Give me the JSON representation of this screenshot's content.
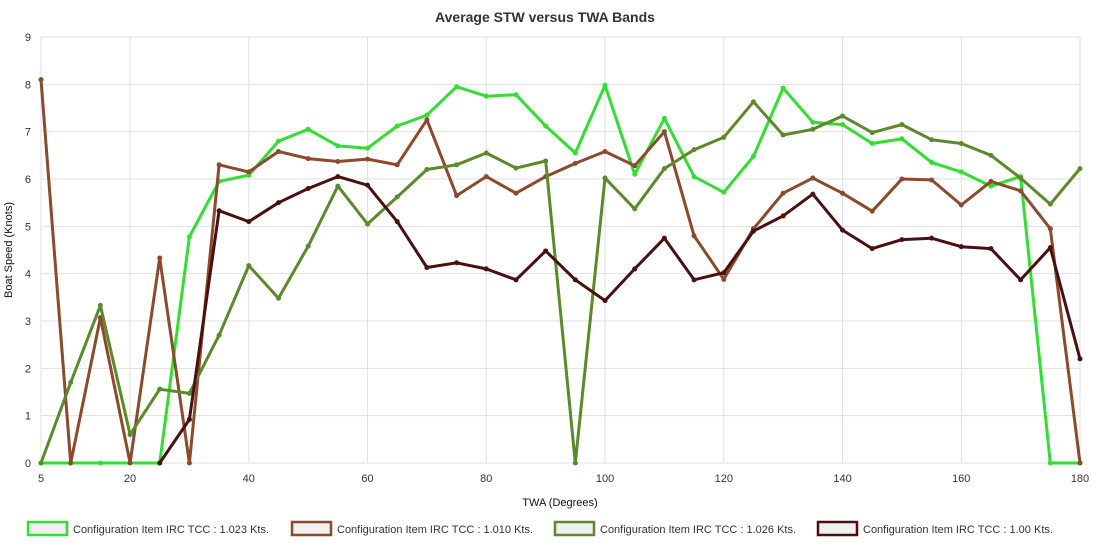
{
  "chart_data": {
    "type": "line",
    "title": "Average STW versus TWA Bands",
    "xlabel": "TWA (Degrees)",
    "ylabel": "Boat Speed (Knots)",
    "xlim": [
      5,
      180
    ],
    "ylim": [
      0,
      9
    ],
    "grid": true,
    "legend_position": "bottom",
    "x_ticks": [
      "5",
      "20",
      "40",
      "60",
      "80",
      "100",
      "120",
      "140",
      "160",
      "180"
    ],
    "y_ticks": [
      "0",
      "1",
      "2",
      "3",
      "4",
      "5",
      "6",
      "7",
      "8",
      "9"
    ],
    "x": [
      5,
      10,
      15,
      20,
      25,
      30,
      35,
      40,
      45,
      50,
      55,
      60,
      65,
      70,
      75,
      80,
      85,
      90,
      95,
      100,
      105,
      110,
      115,
      120,
      125,
      130,
      135,
      140,
      145,
      150,
      155,
      160,
      165,
      170,
      175,
      180
    ],
    "series": [
      {
        "name": "Configuration Item IRC TCC : 1.023 Kts.",
        "color": "#33dd33",
        "values": [
          0,
          0,
          0,
          0,
          0,
          4.78,
          5.95,
          6.08,
          6.8,
          7.05,
          6.7,
          6.65,
          7.12,
          7.35,
          7.95,
          7.75,
          7.78,
          7.12,
          6.55,
          7.98,
          6.1,
          7.28,
          6.05,
          5.72,
          6.48,
          7.92,
          7.2,
          7.15,
          6.75,
          6.85,
          6.35,
          6.15,
          5.85,
          6.05,
          0,
          0
        ]
      },
      {
        "name": "Configuration Item IRC TCC : 1.010 Kts.",
        "color": "#8b4a2b",
        "values": [
          8.1,
          0,
          3.07,
          0,
          4.33,
          0,
          6.3,
          6.15,
          6.58,
          6.43,
          6.37,
          6.42,
          6.3,
          7.25,
          5.65,
          6.05,
          5.7,
          6.05,
          6.33,
          6.58,
          6.28,
          7.0,
          4.8,
          3.88,
          4.95,
          5.7,
          6.02,
          5.7,
          5.32,
          6.0,
          5.98,
          5.45,
          5.95,
          5.75,
          4.95,
          0
        ]
      },
      {
        "name": "Configuration Item IRC TCC : 1.026 Kts.",
        "color": "#5a8a2a",
        "values": [
          0,
          1.7,
          3.33,
          0.6,
          1.56,
          1.47,
          2.7,
          4.17,
          3.48,
          4.58,
          5.85,
          5.05,
          5.62,
          6.2,
          6.3,
          6.55,
          6.23,
          6.38,
          0,
          6.02,
          5.37,
          6.22,
          6.62,
          6.88,
          7.63,
          6.93,
          7.05,
          7.33,
          6.98,
          7.15,
          6.83,
          6.75,
          6.5,
          6.02,
          5.47,
          6.22
        ]
      },
      {
        "name": "Configuration Item IRC TCC : 1.00 Kts.",
        "color": "#4a1010",
        "values": [
          null,
          null,
          null,
          null,
          0,
          0.92,
          5.33,
          5.1,
          5.5,
          5.8,
          6.05,
          5.87,
          5.1,
          4.13,
          4.23,
          4.1,
          3.87,
          4.48,
          3.87,
          3.43,
          4.1,
          4.75,
          3.87,
          4.02,
          4.9,
          5.22,
          5.68,
          4.92,
          4.53,
          4.72,
          4.75,
          4.57,
          4.53,
          3.87,
          4.55,
          2.2
        ]
      }
    ]
  }
}
